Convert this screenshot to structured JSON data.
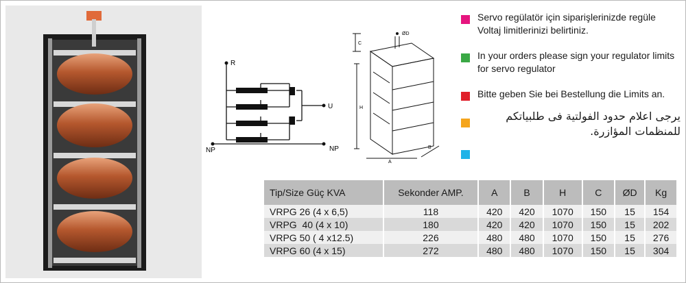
{
  "colors": {
    "pink": "#e6157f",
    "green": "#3aa845",
    "red": "#e0202a",
    "orange": "#f5a51c",
    "blue": "#1fb3e8"
  },
  "schematic": {
    "label_r": "R",
    "label_u": "U",
    "label_np_left": "NP",
    "label_np_right": "NP"
  },
  "cabinet": {
    "label_c": "C",
    "label_h": "H",
    "label_a": "A",
    "label_b": "B",
    "label_od": "ØD"
  },
  "notes": [
    {
      "color": "pink",
      "text": "Servo regülatör için siparişlerinizde regüle Voltaj limitlerinizi belirtiniz."
    },
    {
      "color": "green",
      "text": "In your orders please sign your regulator limits for servo regulator"
    },
    {
      "color": "red",
      "text": "Bitte geben Sie bei Bestellung die Limits an."
    },
    {
      "color": "orange",
      "text": "يرجى اعلام حدود الفولتية فى طلبياتكم للمنظمات المؤازرة."
    },
    {
      "color": "blue",
      "text": ""
    }
  ],
  "table": {
    "headers": [
      "Tip/Size Güç KVA",
      "Sekonder AMP.",
      "A",
      "B",
      "H",
      "C",
      "ØD",
      "Kg"
    ],
    "rows": [
      [
        "VRPG 26 (4 x 6,5)",
        "118",
        "420",
        "420",
        "1070",
        "150",
        "15",
        "154"
      ],
      [
        "VRPG  40 (4 x 10)",
        "180",
        "420",
        "420",
        "1070",
        "150",
        "15",
        "202"
      ],
      [
        "VRPG 50 ( 4 x12.5)",
        "226",
        "480",
        "480",
        "1070",
        "150",
        "15",
        "276"
      ],
      [
        "VRPG 60 (4 x 15)",
        "272",
        "480",
        "480",
        "1070",
        "150",
        "15",
        "304"
      ]
    ]
  }
}
